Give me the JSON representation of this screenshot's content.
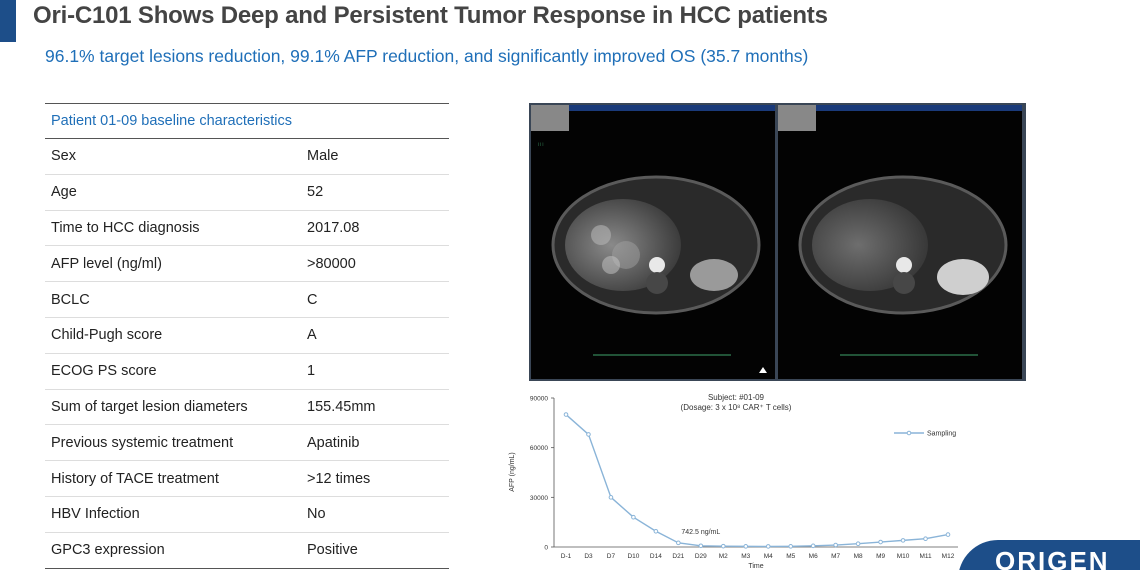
{
  "slide": {
    "title": "Ori-C101 Shows Deep and Persistent Tumor Response in HCC patients",
    "subtitle": "96.1% target lesions reduction, 99.1% AFP reduction, and significantly improved OS (35.7 months)"
  },
  "table": {
    "header": "Patient 01-09 baseline characteristics",
    "rows": [
      {
        "label": "Sex",
        "value": "Male"
      },
      {
        "label": "Age",
        "value": "52"
      },
      {
        "label": "Time to HCC diagnosis",
        "value": "2017.08"
      },
      {
        "label": "AFP level (ng/ml)",
        "value": ">80000"
      },
      {
        "label": "BCLC",
        "value": "C"
      },
      {
        "label": "Child-Pugh score",
        "value": "A"
      },
      {
        "label": "ECOG PS score",
        "value": "1"
      },
      {
        "label": "Sum of target lesion diameters",
        "value": "155.45mm"
      },
      {
        "label": "Previous systemic treatment",
        "value": "Apatinib"
      },
      {
        "label": "History of TACE treatment",
        "value": ">12 times"
      },
      {
        "label": "HBV Infection",
        "value": "No"
      },
      {
        "label": "GPC3 expression",
        "value": "Positive"
      }
    ]
  },
  "logo": {
    "text": "ORIGEN"
  },
  "chart_data": {
    "type": "line",
    "title": "Subject: #01-09",
    "subtitle": "(Dosage: 3 x 10⁸ CAR⁺ T cells)",
    "xlabel": "Time",
    "ylabel": "AFP (ng/mL)",
    "categories": [
      "D-1",
      "D3",
      "D7",
      "D10",
      "D14",
      "D21",
      "D29",
      "M2",
      "M3",
      "M4",
      "M5",
      "M6",
      "M7",
      "M8",
      "M9",
      "M10",
      "M11",
      "M12"
    ],
    "series": [
      {
        "name": "Sampling",
        "values": [
          80000,
          68000,
          30000,
          18000,
          9500,
          2500,
          742.5,
          500,
          400,
          350,
          400,
          700,
          1200,
          2000,
          3000,
          4000,
          5000,
          7500
        ]
      }
    ],
    "ylim": [
      0,
      90000
    ],
    "yticks": [
      "0",
      "30000",
      "60000",
      "90000"
    ],
    "annotation": "742.5 ng/mL",
    "legend_position": "right",
    "line_color": "#8ab4d8"
  }
}
